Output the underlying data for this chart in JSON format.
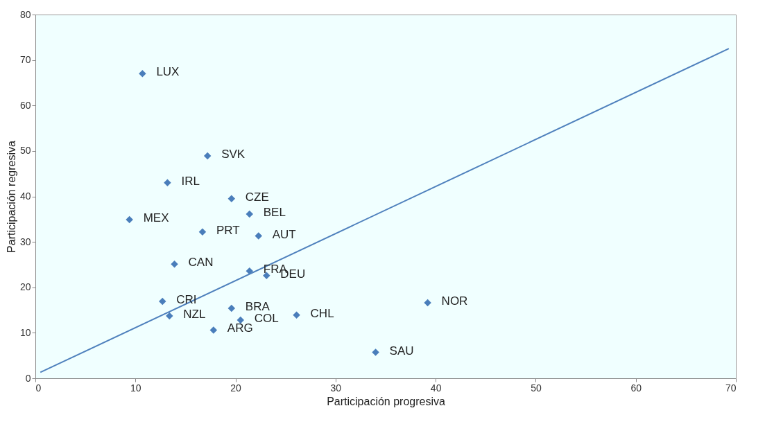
{
  "chart_data": {
    "type": "scatter",
    "xlabel": "Participación progresiva",
    "ylabel": "Participación regresiva",
    "xlim": [
      0,
      70
    ],
    "ylim": [
      0,
      80
    ],
    "xticks": [
      0,
      10,
      20,
      30,
      40,
      50,
      60,
      70
    ],
    "yticks": [
      0,
      10,
      20,
      30,
      40,
      50,
      60,
      70,
      80
    ],
    "grid": false,
    "series": [
      {
        "marker": "diamond",
        "color": "#4a7ebb",
        "x": [
          10.7,
          17.2,
          13.2,
          19.6,
          21.4,
          9.4,
          16.7,
          22.3,
          13.9,
          21.4,
          23.1,
          12.7,
          39.2,
          19.6,
          26.1,
          13.4,
          20.5,
          17.8,
          34.0
        ],
        "values": [
          67.0,
          48.9,
          43.0,
          39.5,
          36.1,
          34.9,
          32.2,
          31.3,
          25.1,
          23.6,
          22.6,
          16.9,
          16.6,
          15.4,
          13.9,
          13.7,
          12.8,
          10.6,
          5.7
        ]
      },
      {
        "type": "line",
        "marker": "none",
        "color": "#4f81bd",
        "x": [
          0.5,
          69.3
        ],
        "values": [
          1.3,
          72.5
        ]
      }
    ],
    "annotations": [
      {
        "text": "LUX",
        "x": 10.7,
        "y": 67.0
      },
      {
        "text": "SVK",
        "x": 17.2,
        "y": 48.9
      },
      {
        "text": "IRL",
        "x": 13.2,
        "y": 43.0
      },
      {
        "text": "CZE",
        "x": 19.6,
        "y": 39.5
      },
      {
        "text": "BEL",
        "x": 21.4,
        "y": 36.1
      },
      {
        "text": "MEX",
        "x": 9.4,
        "y": 34.9
      },
      {
        "text": "PRT",
        "x": 16.7,
        "y": 32.2
      },
      {
        "text": "AUT",
        "x": 22.3,
        "y": 31.3
      },
      {
        "text": "CAN",
        "x": 13.9,
        "y": 25.1
      },
      {
        "text": "FRA",
        "x": 21.4,
        "y": 23.6
      },
      {
        "text": "DEU",
        "x": 23.1,
        "y": 22.6
      },
      {
        "text": "CRI",
        "x": 12.7,
        "y": 16.9
      },
      {
        "text": "NOR",
        "x": 39.2,
        "y": 16.6
      },
      {
        "text": "BRA",
        "x": 19.6,
        "y": 15.4
      },
      {
        "text": "CHL",
        "x": 26.1,
        "y": 13.9
      },
      {
        "text": "NZL",
        "x": 13.4,
        "y": 13.7
      },
      {
        "text": "COL",
        "x": 20.5,
        "y": 12.8
      },
      {
        "text": "ARG",
        "x": 17.8,
        "y": 10.6
      },
      {
        "text": "SAU",
        "x": 34.0,
        "y": 5.7
      }
    ]
  }
}
